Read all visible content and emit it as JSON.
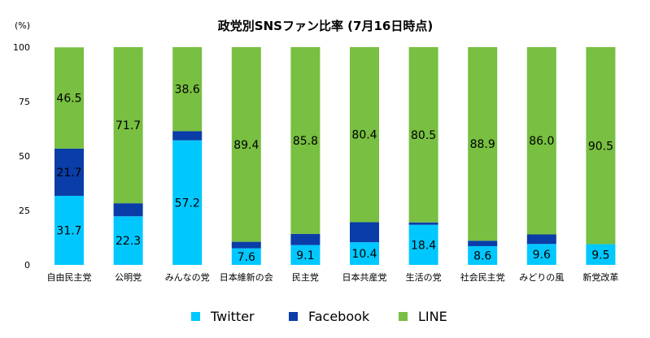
{
  "chart_data": {
    "type": "bar",
    "stacked": true,
    "title": "政党別SNSファン比率 (7月16日時点)",
    "ylabel": "(%)",
    "xlabel": "",
    "ylim": [
      0,
      100
    ],
    "yticks": [
      0,
      25,
      50,
      75,
      100
    ],
    "grid": false,
    "legend_position": "bottom",
    "categories": [
      "自由民主党",
      "公明党",
      "みんなの党",
      "日本維新の会",
      "民主党",
      "日本共産党",
      "生活の党",
      "社会民主党",
      "みどりの風",
      "新党改革"
    ],
    "series": [
      {
        "name": "Twitter",
        "color": "#00c8ff",
        "values": [
          31.7,
          22.3,
          57.2,
          7.6,
          9.1,
          10.4,
          18.4,
          8.6,
          9.6,
          9.5
        ],
        "labels": [
          "31.7",
          "22.3",
          "57.2",
          "7.6",
          "9.1",
          "10.4",
          "18.4",
          "8.6",
          "9.6",
          "9.5"
        ]
      },
      {
        "name": "Facebook",
        "color": "#0a3da8",
        "values": [
          21.7,
          6.0,
          4.2,
          3.0,
          5.1,
          9.2,
          1.1,
          2.5,
          4.4,
          0.0
        ],
        "labels": [
          "21.7",
          "",
          "",
          "",
          "",
          "",
          "",
          "",
          "",
          ""
        ]
      },
      {
        "name": "LINE",
        "color": "#78bf42",
        "values": [
          46.5,
          71.7,
          38.6,
          89.4,
          85.8,
          80.4,
          80.5,
          88.9,
          86.0,
          90.5
        ],
        "labels": [
          "46.5",
          "71.7",
          "38.6",
          "89.4",
          "85.8",
          "80.4",
          "80.5",
          "88.9",
          "86.0",
          "90.5"
        ]
      }
    ]
  }
}
